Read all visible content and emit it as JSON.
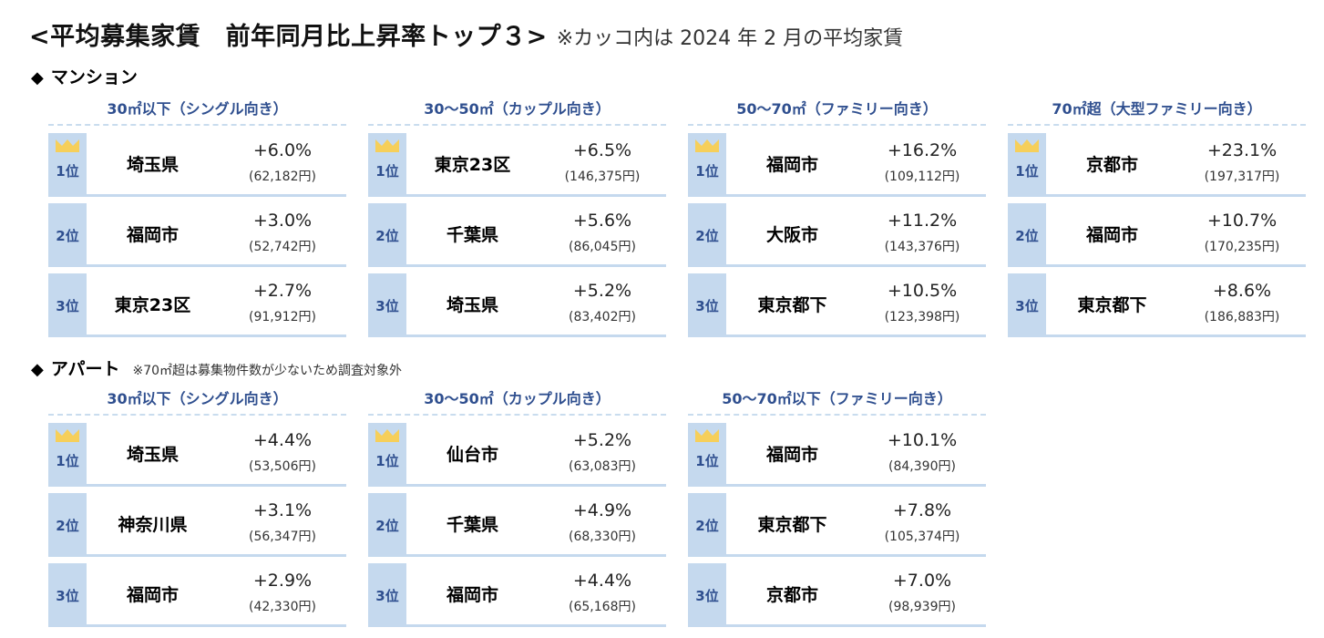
{
  "title": {
    "main": "<平均募集家賃　前年同月比上昇率トップ３>",
    "note": "※カッコ内は 2024 年 2 月の平均家賃"
  },
  "sections": [
    {
      "label": "マンション",
      "note": "",
      "categories": [
        {
          "title": "30㎡以下（シングル向き）",
          "rows": [
            {
              "rank": "1位",
              "city": "埼玉県",
              "pct": "+6.0%",
              "rent": "(62,182円)"
            },
            {
              "rank": "2位",
              "city": "福岡市",
              "pct": "+3.0%",
              "rent": "(52,742円)"
            },
            {
              "rank": "3位",
              "city": "東京23区",
              "pct": "+2.7%",
              "rent": "(91,912円)"
            }
          ]
        },
        {
          "title": "30～50㎡（カップル向き）",
          "rows": [
            {
              "rank": "1位",
              "city": "東京23区",
              "pct": "+6.5%",
              "rent": "(146,375円)"
            },
            {
              "rank": "2位",
              "city": "千葉県",
              "pct": "+5.6%",
              "rent": "(86,045円)"
            },
            {
              "rank": "3位",
              "city": "埼玉県",
              "pct": "+5.2%",
              "rent": "(83,402円)"
            }
          ]
        },
        {
          "title": "50～70㎡（ファミリー向き）",
          "rows": [
            {
              "rank": "1位",
              "city": "福岡市",
              "pct": "+16.2%",
              "rent": "(109,112円)"
            },
            {
              "rank": "2位",
              "city": "大阪市",
              "pct": "+11.2%",
              "rent": "(143,376円)"
            },
            {
              "rank": "3位",
              "city": "東京都下",
              "pct": "+10.5%",
              "rent": "(123,398円)"
            }
          ]
        },
        {
          "title": "70㎡超（大型ファミリー向き）",
          "rows": [
            {
              "rank": "1位",
              "city": "京都市",
              "pct": "+23.1%",
              "rent": "(197,317円)"
            },
            {
              "rank": "2位",
              "city": "福岡市",
              "pct": "+10.7%",
              "rent": "(170,235円)"
            },
            {
              "rank": "3位",
              "city": "東京都下",
              "pct": "+8.6%",
              "rent": "(186,883円)"
            }
          ]
        }
      ]
    },
    {
      "label": "アパート",
      "note": "※70㎡超は募集物件数が少ないため調査対象外",
      "categories": [
        {
          "title": "30㎡以下（シングル向き）",
          "rows": [
            {
              "rank": "1位",
              "city": "埼玉県",
              "pct": "+4.4%",
              "rent": "(53,506円)"
            },
            {
              "rank": "2位",
              "city": "神奈川県",
              "pct": "+3.1%",
              "rent": "(56,347円)"
            },
            {
              "rank": "3位",
              "city": "福岡市",
              "pct": "+2.9%",
              "rent": "(42,330円)"
            }
          ]
        },
        {
          "title": "30～50㎡（カップル向き）",
          "rows": [
            {
              "rank": "1位",
              "city": "仙台市",
              "pct": "+5.2%",
              "rent": "(63,083円)"
            },
            {
              "rank": "2位",
              "city": "千葉県",
              "pct": "+4.9%",
              "rent": "(68,330円)"
            },
            {
              "rank": "3位",
              "city": "福岡市",
              "pct": "+4.4%",
              "rent": "(65,168円)"
            }
          ]
        },
        {
          "title": "50～70㎡以下（ファミリー向き）",
          "rows": [
            {
              "rank": "1位",
              "city": "福岡市",
              "pct": "+10.1%",
              "rent": "(84,390円)"
            },
            {
              "rank": "2位",
              "city": "東京都下",
              "pct": "+7.8%",
              "rent": "(105,374円)"
            },
            {
              "rank": "3位",
              "city": "京都市",
              "pct": "+7.0%",
              "rent": "(98,939円)"
            }
          ]
        }
      ]
    }
  ],
  "colors": {
    "rank_bg": "#c5d9ee",
    "rank_text": "#2f4f8f",
    "category_title": "#2f4f8f",
    "crown": "#f6cf5a",
    "dash_rule": "#c9dcee"
  },
  "chart_data": {
    "type": "table",
    "title": "平均募集家賃 前年同月比上昇率トップ３",
    "subtitle": "※カッコ内は 2024 年 2 月の平均家賃",
    "columns": [
      "rank",
      "city",
      "yoy_change_pct",
      "avg_rent_yen"
    ],
    "groups": [
      {
        "property": "マンション",
        "size": "30㎡以下（シングル向き）",
        "rows": [
          [
            1,
            "埼玉県",
            6.0,
            62182
          ],
          [
            2,
            "福岡市",
            3.0,
            52742
          ],
          [
            3,
            "東京23区",
            2.7,
            91912
          ]
        ]
      },
      {
        "property": "マンション",
        "size": "30～50㎡（カップル向き）",
        "rows": [
          [
            1,
            "東京23区",
            6.5,
            146375
          ],
          [
            2,
            "千葉県",
            5.6,
            86045
          ],
          [
            3,
            "埼玉県",
            5.2,
            83402
          ]
        ]
      },
      {
        "property": "マンション",
        "size": "50～70㎡（ファミリー向き）",
        "rows": [
          [
            1,
            "福岡市",
            16.2,
            109112
          ],
          [
            2,
            "大阪市",
            11.2,
            143376
          ],
          [
            3,
            "東京都下",
            10.5,
            123398
          ]
        ]
      },
      {
        "property": "マンション",
        "size": "70㎡超（大型ファミリー向き）",
        "rows": [
          [
            1,
            "京都市",
            23.1,
            197317
          ],
          [
            2,
            "福岡市",
            10.7,
            170235
          ],
          [
            3,
            "東京都下",
            8.6,
            186883
          ]
        ]
      },
      {
        "property": "アパート",
        "size": "30㎡以下（シングル向き）",
        "rows": [
          [
            1,
            "埼玉県",
            4.4,
            53506
          ],
          [
            2,
            "神奈川県",
            3.1,
            56347
          ],
          [
            3,
            "福岡市",
            2.9,
            42330
          ]
        ]
      },
      {
        "property": "アパート",
        "size": "30～50㎡（カップル向き）",
        "rows": [
          [
            1,
            "仙台市",
            5.2,
            63083
          ],
          [
            2,
            "千葉県",
            4.9,
            68330
          ],
          [
            3,
            "福岡市",
            4.4,
            65168
          ]
        ]
      },
      {
        "property": "アパート",
        "size": "50～70㎡以下（ファミリー向き）",
        "rows": [
          [
            1,
            "福岡市",
            10.1,
            84390
          ],
          [
            2,
            "東京都下",
            7.8,
            105374
          ],
          [
            3,
            "京都市",
            7.0,
            98939
          ]
        ]
      }
    ],
    "notes": [
      "アパート: ※70㎡超は募集物件数が少ないため調査対象外"
    ]
  }
}
